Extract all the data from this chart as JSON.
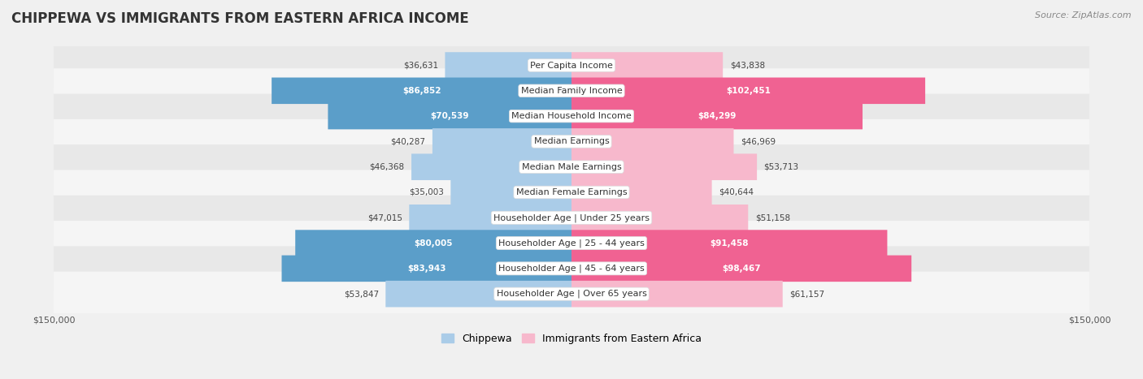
{
  "title": "CHIPPEWA VS IMMIGRANTS FROM EASTERN AFRICA INCOME",
  "source": "Source: ZipAtlas.com",
  "categories": [
    "Per Capita Income",
    "Median Family Income",
    "Median Household Income",
    "Median Earnings",
    "Median Male Earnings",
    "Median Female Earnings",
    "Householder Age | Under 25 years",
    "Householder Age | 25 - 44 years",
    "Householder Age | 45 - 64 years",
    "Householder Age | Over 65 years"
  ],
  "chippewa_values": [
    36631,
    86852,
    70539,
    40287,
    46368,
    35003,
    47015,
    80005,
    83943,
    53847
  ],
  "immigrant_values": [
    43838,
    102451,
    84299,
    46969,
    53713,
    40644,
    51158,
    91458,
    98467,
    61157
  ],
  "chippewa_light": "#aacce8",
  "chippewa_dark": "#5b9ec9",
  "immigrant_light": "#f7b8cc",
  "immigrant_dark": "#f06292",
  "chippewa_label": "Chippewa",
  "immigrant_label": "Immigrants from Eastern Africa",
  "max_value": 150000,
  "bar_height": 0.52,
  "bg_color": "#f0f0f0",
  "row_bg_even": "#e8e8e8",
  "row_bg_odd": "#f5f5f5",
  "white_threshold": 68000,
  "title_fontsize": 12,
  "label_fontsize": 8,
  "value_fontsize": 7.5
}
